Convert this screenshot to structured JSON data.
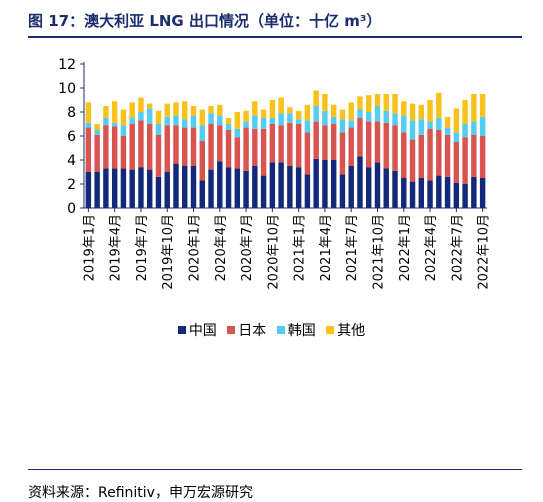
{
  "figure": {
    "title": "图 17：澳大利亚 LNG 出口情况（单位：十亿 m³）",
    "source": "资料来源：Refinitiv，申万宏源研究"
  },
  "colors": {
    "china": "#13287a",
    "japan": "#d9534f",
    "korea": "#55ccf2",
    "other": "#f8c21a",
    "axis": "#1a2e6e",
    "title": "#1a2e6e"
  },
  "chart_data": {
    "type": "bar",
    "stacked": true,
    "title": "",
    "xlabel": "",
    "ylabel": "",
    "ylim": [
      0,
      12
    ],
    "yticks": [
      0,
      2,
      4,
      6,
      8,
      10,
      12
    ],
    "grid": false,
    "legend_position": "bottom",
    "x_tick_labels": [
      "2019年1月",
      "2019年4月",
      "2019年7月",
      "2019年10月",
      "2020年1月",
      "2020年4月",
      "2020年7月",
      "2020年10月",
      "2021年1月",
      "2021年4月",
      "2021年7月",
      "2021年10月",
      "2022年1月",
      "2022年4月",
      "2022年7月",
      "2022年10月"
    ],
    "categories": [
      "2019-01",
      "2019-02",
      "2019-03",
      "2019-04",
      "2019-05",
      "2019-06",
      "2019-07",
      "2019-08",
      "2019-09",
      "2019-10",
      "2019-11",
      "2019-12",
      "2020-01",
      "2020-02",
      "2020-03",
      "2020-04",
      "2020-05",
      "2020-06",
      "2020-07",
      "2020-08",
      "2020-09",
      "2020-10",
      "2020-11",
      "2020-12",
      "2021-01",
      "2021-02",
      "2021-03",
      "2021-04",
      "2021-05",
      "2021-06",
      "2021-07",
      "2021-08",
      "2021-09",
      "2021-10",
      "2021-11",
      "2021-12",
      "2022-01",
      "2022-02",
      "2022-03",
      "2022-04",
      "2022-05",
      "2022-06",
      "2022-07",
      "2022-08",
      "2022-09",
      "2022-10"
    ],
    "series": [
      {
        "name": "中国",
        "key": "china",
        "values": [
          3.0,
          3.0,
          3.3,
          3.3,
          3.3,
          3.2,
          3.4,
          3.2,
          2.6,
          3.0,
          3.7,
          3.5,
          3.5,
          2.3,
          3.2,
          3.9,
          3.4,
          3.3,
          3.1,
          3.5,
          2.7,
          3.8,
          3.8,
          3.5,
          3.4,
          2.8,
          4.1,
          4.0,
          4.0,
          2.8,
          3.5,
          4.3,
          3.4,
          3.8,
          3.3,
          3.1,
          2.5,
          2.2,
          2.5,
          2.3,
          2.7,
          2.6,
          2.1,
          2.0,
          2.6,
          2.5
        ]
      },
      {
        "name": "日本",
        "key": "japan",
        "values": [
          3.7,
          3.1,
          3.6,
          3.5,
          2.7,
          3.8,
          3.9,
          3.8,
          3.5,
          3.9,
          3.2,
          3.2,
          3.2,
          3.3,
          3.8,
          3.0,
          3.1,
          2.6,
          3.6,
          3.1,
          3.9,
          3.2,
          3.1,
          3.6,
          3.6,
          3.5,
          3.1,
          2.9,
          3.0,
          3.5,
          3.2,
          3.2,
          3.8,
          3.4,
          3.8,
          3.8,
          3.8,
          3.5,
          3.6,
          4.3,
          3.8,
          3.5,
          3.4,
          3.9,
          3.5,
          3.5
        ]
      },
      {
        "name": "韩国",
        "key": "korea",
        "values": [
          0.4,
          0.4,
          0.6,
          0.3,
          0.9,
          0.5,
          0.7,
          1.3,
          0.9,
          0.7,
          0.8,
          0.7,
          1.0,
          1.3,
          0.9,
          0.8,
          0.5,
          0.7,
          0.5,
          1.1,
          0.9,
          0.5,
          1.0,
          0.8,
          0.4,
          1.0,
          1.3,
          1.2,
          0.6,
          1.1,
          0.6,
          0.7,
          0.8,
          1.3,
          1.0,
          1.0,
          1.4,
          1.6,
          1.3,
          0.6,
          1.0,
          0.6,
          0.8,
          1.1,
          1.1,
          1.6
        ]
      },
      {
        "name": "其他",
        "key": "other",
        "values": [
          1.7,
          0.5,
          1.0,
          1.8,
          1.3,
          1.3,
          1.2,
          0.4,
          1.1,
          1.1,
          1.1,
          1.5,
          0.8,
          1.3,
          0.6,
          0.9,
          0.5,
          1.4,
          0.9,
          1.2,
          0.7,
          1.5,
          1.3,
          0.5,
          0.7,
          1.3,
          1.3,
          1.4,
          1.0,
          0.8,
          1.5,
          1.1,
          1.4,
          1.0,
          1.4,
          1.6,
          1.2,
          1.4,
          1.2,
          1.8,
          2.1,
          0.9,
          2.0,
          2.0,
          2.3,
          1.9
        ]
      }
    ]
  }
}
